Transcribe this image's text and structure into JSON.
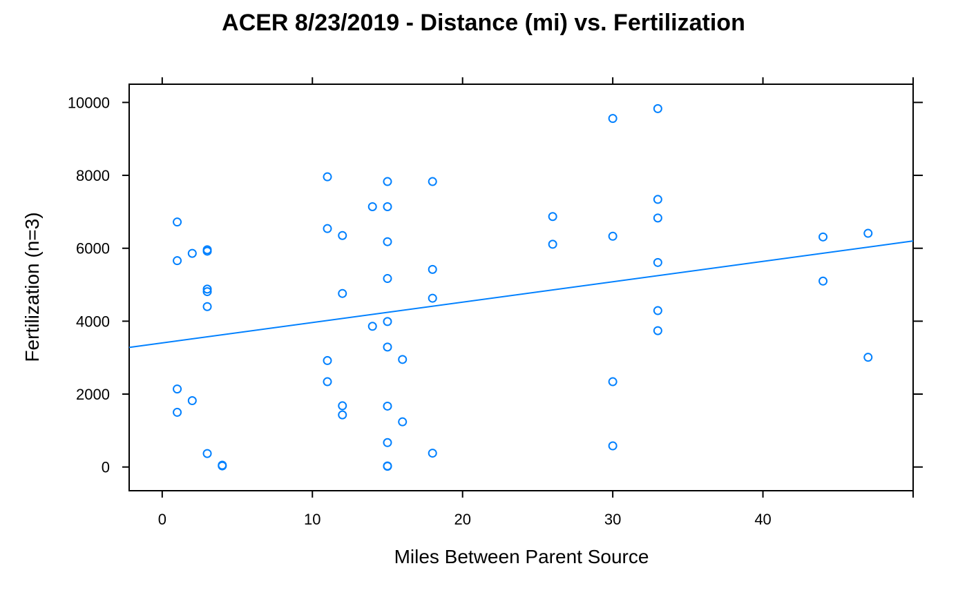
{
  "chart_data": {
    "type": "scatter",
    "title": "ACER 8/23/2019 - Distance (mi) vs. Fertilization",
    "xlabel": "Miles Between Parent Source",
    "ylabel": "Fertilization (n=3)",
    "xlim": [
      -2.2,
      50
    ],
    "ylim": [
      -650,
      10500
    ],
    "xticks": [
      0,
      10,
      20,
      30,
      40
    ],
    "yticks": [
      0,
      2000,
      4000,
      6000,
      8000,
      10000
    ],
    "xtick_labels": [
      "0",
      "10",
      "20",
      "30",
      "40"
    ],
    "ytick_labels": [
      "0",
      "2000",
      "4000",
      "6000",
      "8000",
      "10000"
    ],
    "grid": false,
    "point_color": "#0080ff",
    "line_color": "#0080ff",
    "points": [
      [
        1,
        6720
      ],
      [
        1,
        5660
      ],
      [
        1,
        2140
      ],
      [
        1,
        1500
      ],
      [
        2,
        5860
      ],
      [
        2,
        1820
      ],
      [
        3,
        5960
      ],
      [
        3,
        5920
      ],
      [
        3,
        4880
      ],
      [
        3,
        4810
      ],
      [
        3,
        4400
      ],
      [
        3,
        370
      ],
      [
        4,
        50
      ],
      [
        4,
        30
      ],
      [
        11,
        7960
      ],
      [
        11,
        6540
      ],
      [
        11,
        2920
      ],
      [
        11,
        2340
      ],
      [
        12,
        6350
      ],
      [
        12,
        4760
      ],
      [
        12,
        1680
      ],
      [
        12,
        1430
      ],
      [
        14,
        7140
      ],
      [
        14,
        3860
      ],
      [
        15,
        7830
      ],
      [
        15,
        7140
      ],
      [
        15,
        6180
      ],
      [
        15,
        5170
      ],
      [
        15,
        3990
      ],
      [
        15,
        3290
      ],
      [
        15,
        1670
      ],
      [
        15,
        670
      ],
      [
        15,
        30
      ],
      [
        15,
        20
      ],
      [
        16,
        2950
      ],
      [
        16,
        1240
      ],
      [
        18,
        7830
      ],
      [
        18,
        5420
      ],
      [
        18,
        4630
      ],
      [
        18,
        380
      ],
      [
        26,
        6870
      ],
      [
        26,
        6110
      ],
      [
        30,
        9560
      ],
      [
        30,
        6330
      ],
      [
        30,
        2340
      ],
      [
        30,
        580
      ],
      [
        33,
        9830
      ],
      [
        33,
        7340
      ],
      [
        33,
        6830
      ],
      [
        33,
        5610
      ],
      [
        33,
        4290
      ],
      [
        33,
        3740
      ],
      [
        44,
        6310
      ],
      [
        44,
        5100
      ],
      [
        47,
        6410
      ],
      [
        47,
        3010
      ]
    ],
    "regression_line": {
      "x": [
        -2.2,
        50
      ],
      "y": [
        3280,
        6200
      ]
    }
  }
}
